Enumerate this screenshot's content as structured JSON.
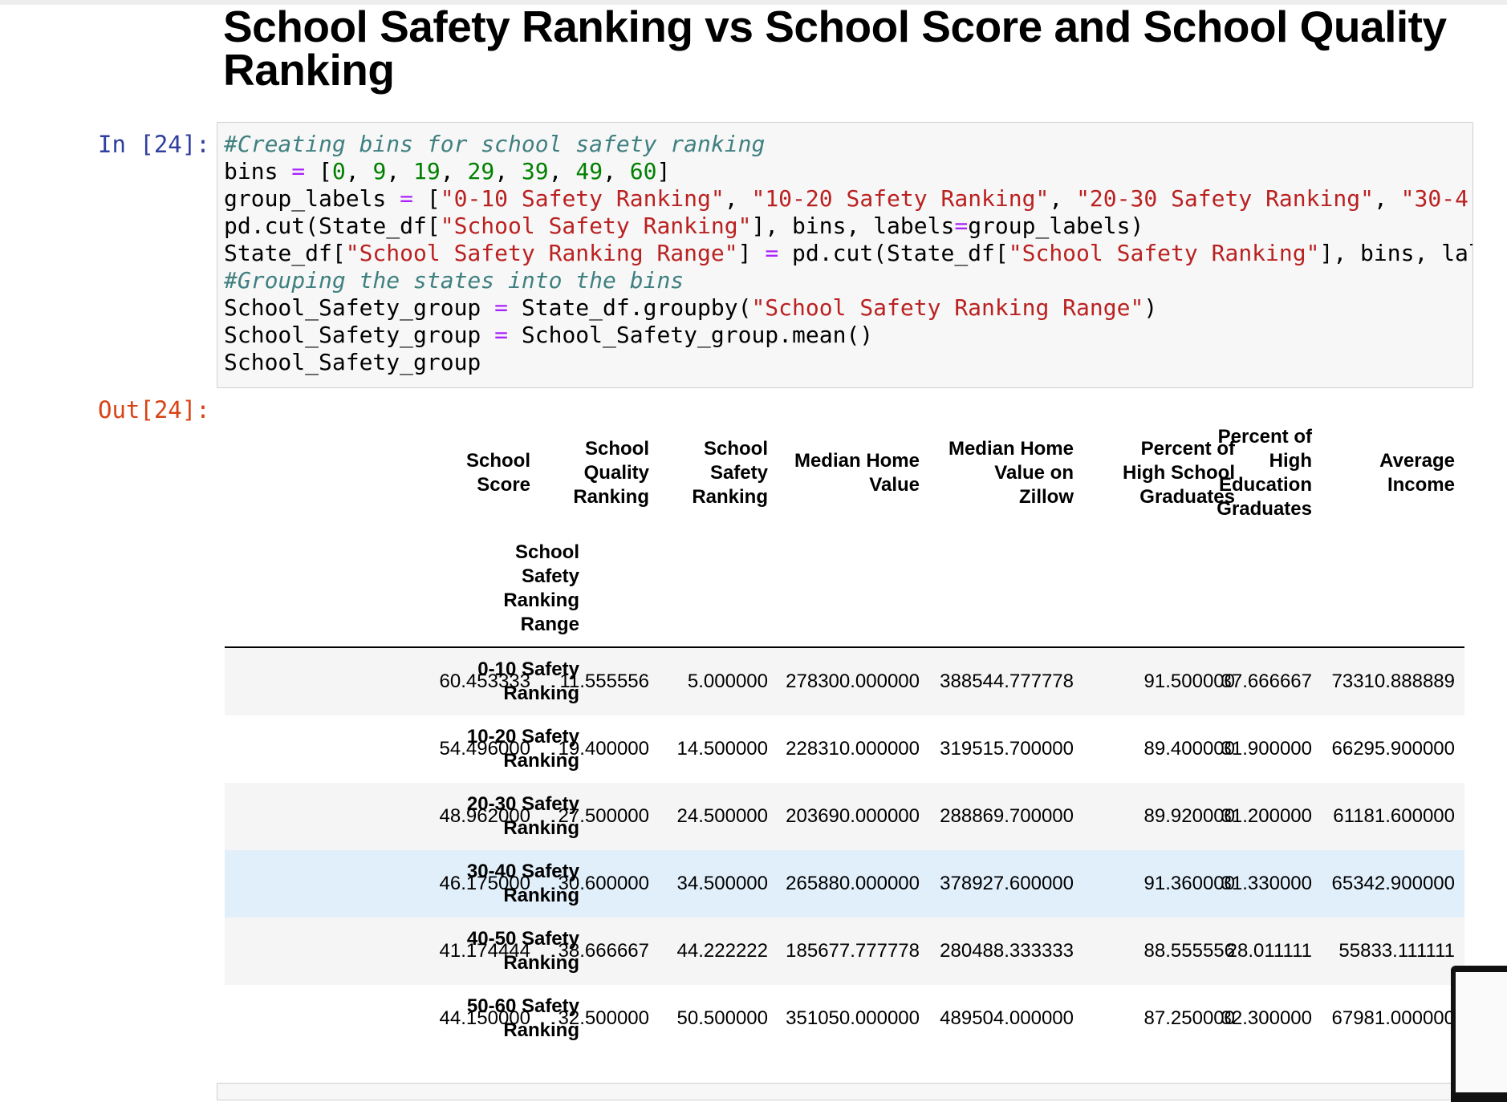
{
  "heading": "School Safety Ranking vs School Score and School Quality Ranking",
  "in_prompt": "In [24]:",
  "out_prompt": "Out[24]:",
  "code": {
    "line1_comment": "#Creating bins for school safety ranking",
    "bins_lhs": "bins ",
    "bins_eq": "=",
    "bins_open": " [",
    "bins_values": [
      "0",
      "9",
      "19",
      "29",
      "39",
      "49",
      "60"
    ],
    "labels_lhs": "group_labels ",
    "labels_open": " [",
    "labels_strings": [
      "\"0-10 Safety Ranking\"",
      "\"10-20 Safety Ranking\"",
      "\"20-30 Safety Ranking\"",
      "\"30-4"
    ],
    "cut_line_a": "pd.cut(State_df[",
    "cut_line_str": "\"School Safety Ranking\"",
    "cut_line_b": "], bins, labels",
    "cut_line_c": "group_labels)",
    "assign_a": "State_df[",
    "assign_str1": "\"School Safety Ranking Range\"",
    "assign_b": "] ",
    "assign_c": " pd.cut(State_df[",
    "assign_str2": "\"School Safety Ranking\"",
    "assign_d": "], bins, lal",
    "comment2": "#Grouping the states into the bins",
    "group_a": "School_Safety_group ",
    "group_b": " State_df.groupby(",
    "group_str": "\"School Safety Ranking Range\"",
    "group_c": ")",
    "mean_a": "School_Safety_group ",
    "mean_b": " School_Safety_group.mean()",
    "last": "School_Safety_group"
  },
  "table": {
    "index_name": "School\nSafety\nRanking\nRange",
    "columns": [
      "School\nScore",
      "School\nQuality\nRanking",
      "School\nSafety\nRanking",
      "Median Home\nValue",
      "Median Home\nValue on\nZillow",
      "Percent of\nHigh School\nGraduates",
      "Percent of\nHigh\nEducation\nGraduates",
      "Average\nIncome"
    ],
    "rows": [
      {
        "label": "0-10 Safety\nRanking",
        "values": [
          "60.453333",
          "11.555556",
          "5.000000",
          "278300.000000",
          "388544.777778",
          "91.500000",
          "37.666667",
          "73310.888889"
        ]
      },
      {
        "label": "10-20 Safety\nRanking",
        "values": [
          "54.496000",
          "19.400000",
          "14.500000",
          "228310.000000",
          "319515.700000",
          "89.400000",
          "31.900000",
          "66295.900000"
        ]
      },
      {
        "label": "20-30 Safety\nRanking",
        "values": [
          "48.962000",
          "27.500000",
          "24.500000",
          "203690.000000",
          "288869.700000",
          "89.920000",
          "31.200000",
          "61181.600000"
        ]
      },
      {
        "label": "30-40 Safety\nRanking",
        "values": [
          "46.175000",
          "30.600000",
          "34.500000",
          "265880.000000",
          "378927.600000",
          "91.360000",
          "31.330000",
          "65342.900000"
        ]
      },
      {
        "label": "40-50 Safety\nRanking",
        "values": [
          "41.174444",
          "38.666667",
          "44.222222",
          "185677.777778",
          "280488.333333",
          "88.555556",
          "28.011111",
          "55833.111111"
        ]
      },
      {
        "label": "50-60 Safety\nRanking",
        "values": [
          "44.150000",
          "32.500000",
          "50.500000",
          "351050.000000",
          "489504.000000",
          "87.250000",
          "32.300000",
          "67981.000000"
        ]
      }
    ]
  }
}
